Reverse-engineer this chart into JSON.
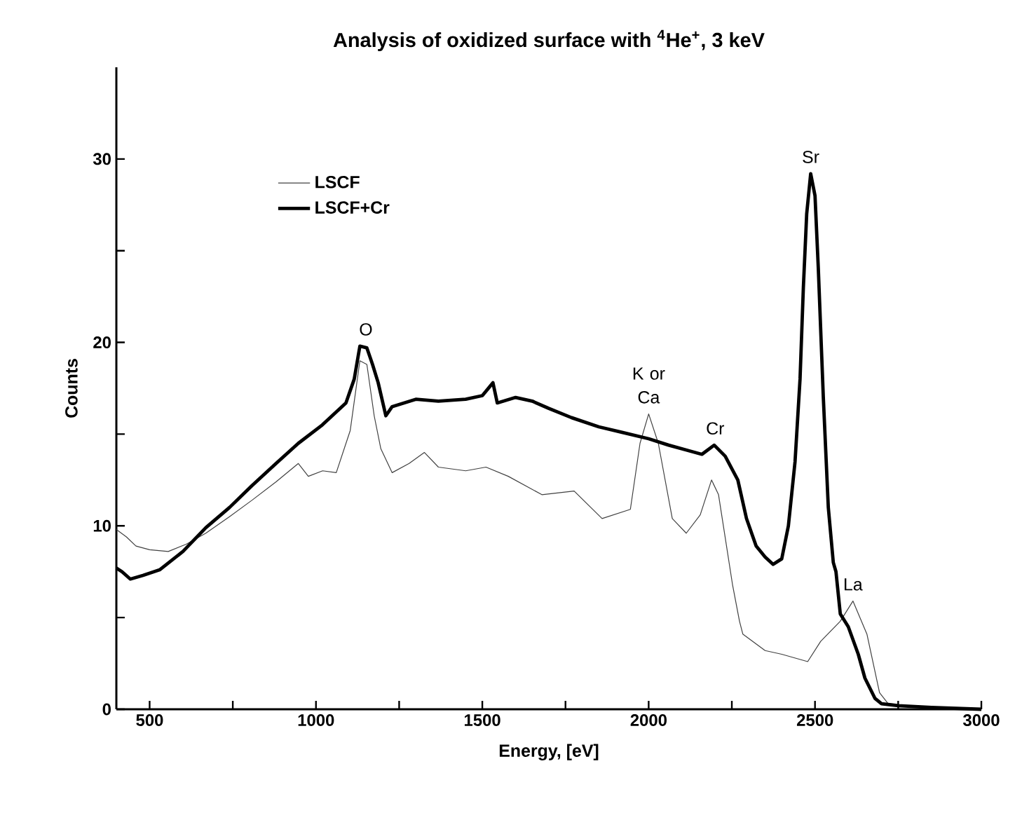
{
  "chart_data": {
    "type": "line",
    "title": "Analysis of oxidized surface with $^{4}$He$^{+}$, 3 keV",
    "xlabel": "Energy,  [eV]",
    "ylabel": "Counts",
    "xlim": [
      400,
      3000
    ],
    "ylim": [
      0,
      35
    ],
    "xticks": [
      500,
      {
        "value": 750,
        "label": null
      },
      1000,
      {
        "value": 1250,
        "label": null
      },
      1500,
      {
        "value": 1750,
        "label": null
      },
      2000,
      {
        "value": 2250,
        "label": null
      },
      2500,
      {
        "value": 2750,
        "label": null
      },
      3000
    ],
    "yticks": [
      0,
      {
        "value": 5,
        "label": null
      },
      10,
      {
        "value": 15,
        "label": null
      },
      20,
      {
        "value": 25,
        "label": null
      },
      30
    ],
    "legend": "top left",
    "marker": "none",
    "line_style": "solid",
    "series": [
      {
        "name": "LSCF",
        "color": "#404040",
        "x": [
          400,
          430,
          459,
          500,
          556,
          610,
          669,
          740,
          808,
          880,
          947,
          977,
          1020,
          1061,
          1103,
          1132,
          1153,
          1175,
          1195,
          1229,
          1280,
          1326,
          1368,
          1450,
          1511,
          1578,
          1679,
          1776,
          1860,
          1945,
          1974,
          2000,
          2029,
          2071,
          2113,
          2155,
          2189,
          2210,
          2252,
          2273,
          2283,
          2350,
          2400,
          2478,
          2517,
          2576,
          2614,
          2656,
          2694,
          2720,
          2800,
          3000
        ],
        "values": [
          9.8,
          9.4,
          8.9,
          8.7,
          8.6,
          9.0,
          9.6,
          10.5,
          11.4,
          12.4,
          13.4,
          12.7,
          13.0,
          12.9,
          15.2,
          19.0,
          18.8,
          16.0,
          14.2,
          12.9,
          13.4,
          14.0,
          13.2,
          13.0,
          13.2,
          12.7,
          11.7,
          11.9,
          10.4,
          10.9,
          14.5,
          16.1,
          14.5,
          10.4,
          9.6,
          10.6,
          12.5,
          11.7,
          6.8,
          4.8,
          4.1,
          3.2,
          3.0,
          2.6,
          3.7,
          4.8,
          5.9,
          4.1,
          0.9,
          0.3,
          0.15,
          0
        ]
      },
      {
        "name": "LSCF+Cr",
        "color": "#000000",
        "x": [
          400,
          417,
          442,
          480,
          530,
          600,
          669,
          740,
          808,
          880,
          947,
          1019,
          1090,
          1115,
          1132,
          1153,
          1170,
          1187,
          1210,
          1229,
          1300,
          1368,
          1450,
          1500,
          1532,
          1545,
          1600,
          1650,
          1700,
          1768,
          1850,
          1920,
          2000,
          2060,
          2120,
          2160,
          2197,
          2230,
          2268,
          2294,
          2323,
          2350,
          2374,
          2400,
          2420,
          2440,
          2455,
          2465,
          2475,
          2487,
          2500,
          2510,
          2525,
          2540,
          2555,
          2563,
          2576,
          2600,
          2630,
          2650,
          2680,
          2700,
          2750,
          2850,
          3000
        ],
        "values": [
          7.7,
          7.5,
          7.1,
          7.3,
          7.6,
          8.6,
          9.9,
          11.0,
          12.2,
          13.4,
          14.5,
          15.5,
          16.7,
          18.0,
          19.8,
          19.7,
          18.8,
          17.8,
          16.0,
          16.5,
          16.9,
          16.8,
          16.9,
          17.1,
          17.8,
          16.7,
          17.0,
          16.8,
          16.4,
          15.9,
          15.4,
          15.1,
          14.75,
          14.4,
          14.1,
          13.9,
          14.4,
          13.8,
          12.5,
          10.4,
          8.9,
          8.3,
          7.9,
          8.2,
          10.0,
          13.5,
          18.0,
          23.0,
          27.0,
          29.2,
          28.0,
          24.0,
          17.0,
          11.0,
          8.0,
          7.5,
          5.2,
          4.5,
          3.0,
          1.7,
          0.6,
          0.3,
          0.2,
          0.1,
          0
        ]
      }
    ],
    "annotations": [
      {
        "text": "O",
        "x": 1150,
        "y": 19.8
      },
      {
        "text": "K or Ca",
        "x": 2000,
        "y": 16.1
      },
      {
        "text": "Cr",
        "x": 2200,
        "y": 14.4
      },
      {
        "text": "Sr",
        "x": 2487,
        "y": 29.2
      },
      {
        "text": "La",
        "x": 2614,
        "y": 5.9
      }
    ]
  }
}
